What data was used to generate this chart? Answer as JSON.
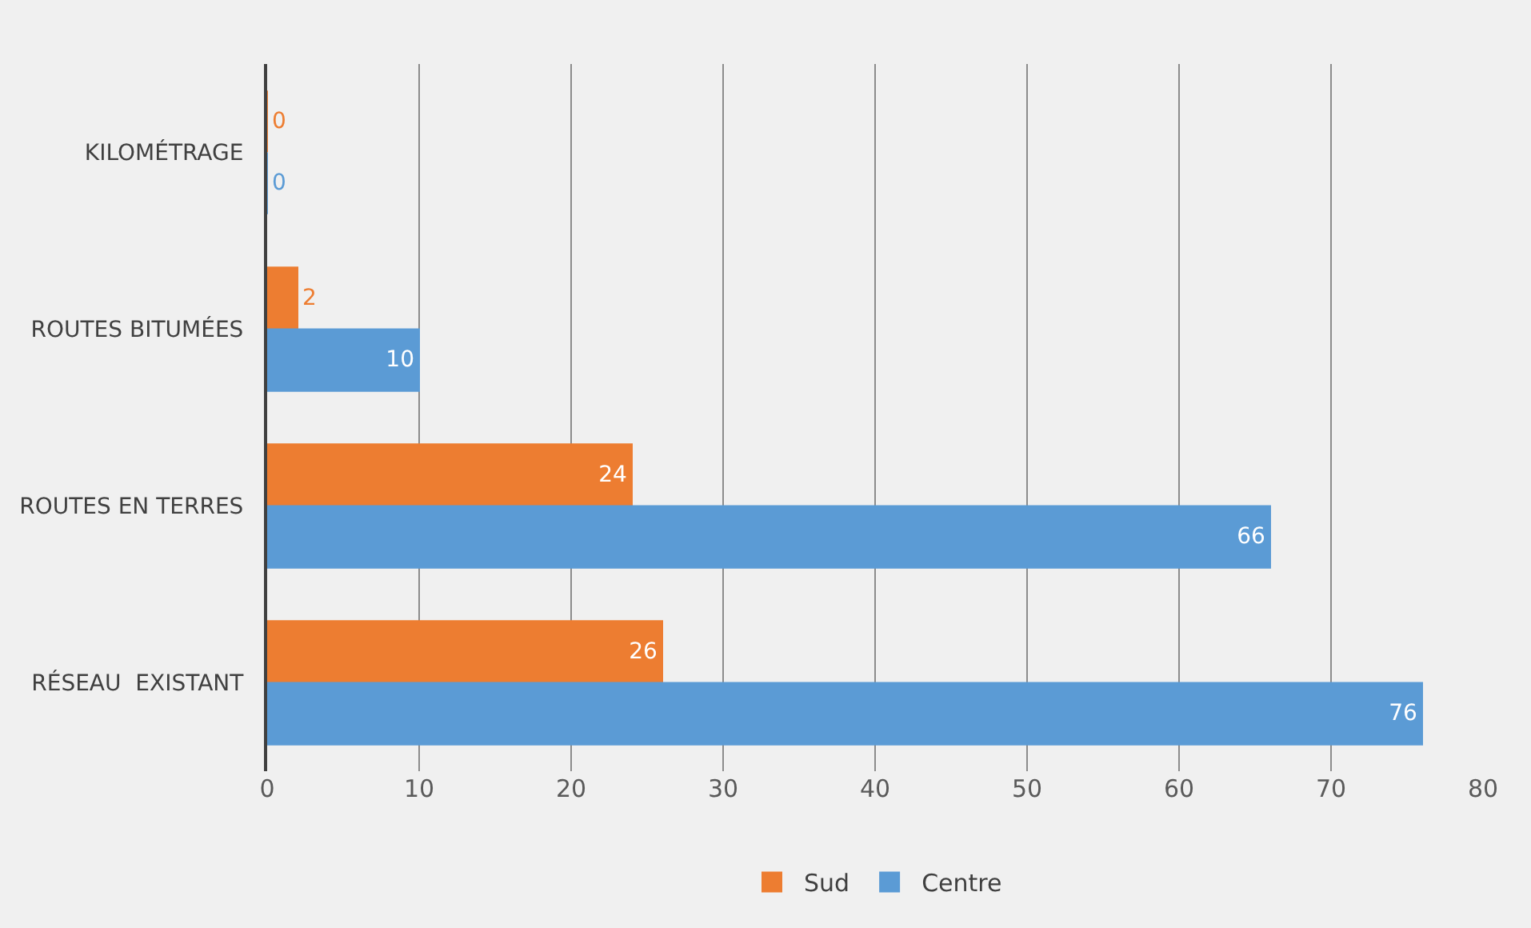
{
  "chart_data": {
    "type": "bar",
    "orientation": "horizontal",
    "categories": [
      "KILOMÉTRAGE",
      "ROUTES BITUMÉES",
      "ROUTES EN TERRES",
      "RÉSEAU  EXISTANT"
    ],
    "series": [
      {
        "name": "Sud",
        "color": "#ed7d31",
        "values": [
          0,
          2,
          24,
          26
        ]
      },
      {
        "name": "Centre",
        "color": "#5b9bd5",
        "values": [
          0,
          10,
          66,
          76
        ]
      }
    ],
    "xlim": [
      0,
      80
    ],
    "xticks": [
      0,
      10,
      20,
      30,
      40,
      50,
      60,
      70,
      80
    ],
    "grid": "x",
    "legend": "bottom",
    "data_labels": true
  }
}
